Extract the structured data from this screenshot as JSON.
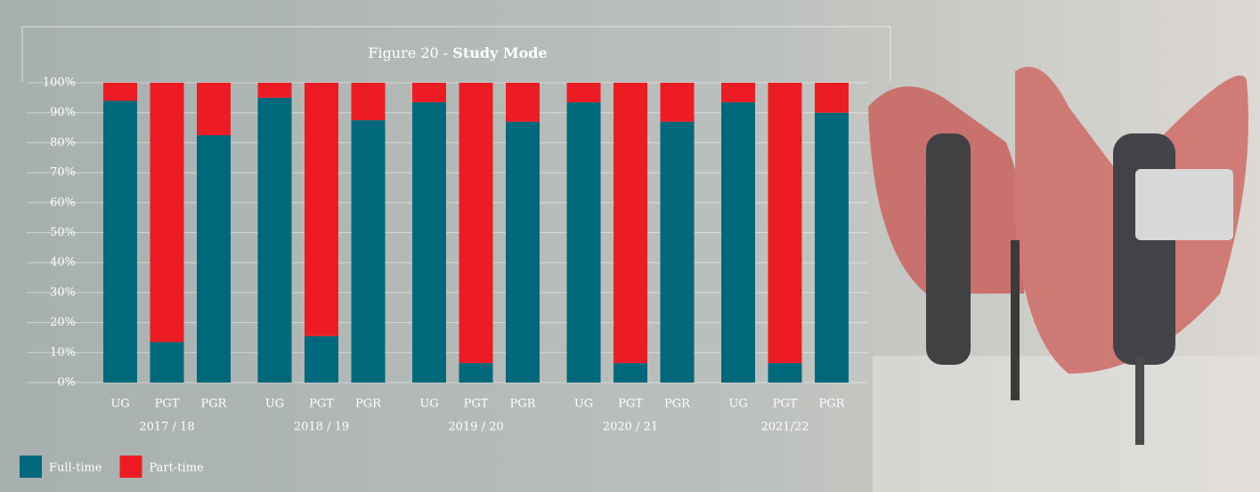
{
  "chart_data": {
    "type": "stacked_bar",
    "title": "Figure 20 -",
    "title_emphasis": "Study Mode",
    "categories": [
      "UG",
      "PGT",
      "PGR",
      "UG",
      "PGT",
      "PGR",
      "UG",
      "PGT",
      "PGR",
      "UG",
      "PGT",
      "PGR",
      "UG",
      "PGT",
      "PGR"
    ],
    "groups": [
      "2017 / 18",
      "2018 / 19",
      "2019 / 20",
      "2020 / 21",
      "2021/22"
    ],
    "series": [
      {
        "name": "Full-time",
        "color": "#00687b",
        "values": [
          94,
          13.5,
          82.5,
          95,
          15.5,
          87.5,
          93.5,
          6.5,
          87,
          93.5,
          6.5,
          87,
          93.5,
          6.5,
          90
        ]
      },
      {
        "name": "Part-time",
        "color": "#ed1c24",
        "values": [
          6,
          86.5,
          17.5,
          5,
          84.5,
          12.5,
          6.5,
          93.5,
          13,
          6.5,
          93.5,
          13,
          6.5,
          93.5,
          10
        ]
      }
    ],
    "ylim": [
      0,
      100
    ],
    "yticks": [
      {
        "value": 0,
        "label": "0%"
      },
      {
        "value": 10,
        "label": "10%"
      },
      {
        "value": 20,
        "label": "20%"
      },
      {
        "value": 30,
        "label": "30%"
      },
      {
        "value": 40,
        "label": "40%"
      },
      {
        "value": 50,
        "label": "50%"
      },
      {
        "value": 60,
        "label": "60%"
      },
      {
        "value": 70,
        "label": "70%"
      },
      {
        "value": 80,
        "label": "80%"
      },
      {
        "value": 90,
        "label": "90%"
      },
      {
        "value": 100,
        "label": "100%"
      }
    ],
    "grid": true,
    "legend": "bottom-left"
  }
}
